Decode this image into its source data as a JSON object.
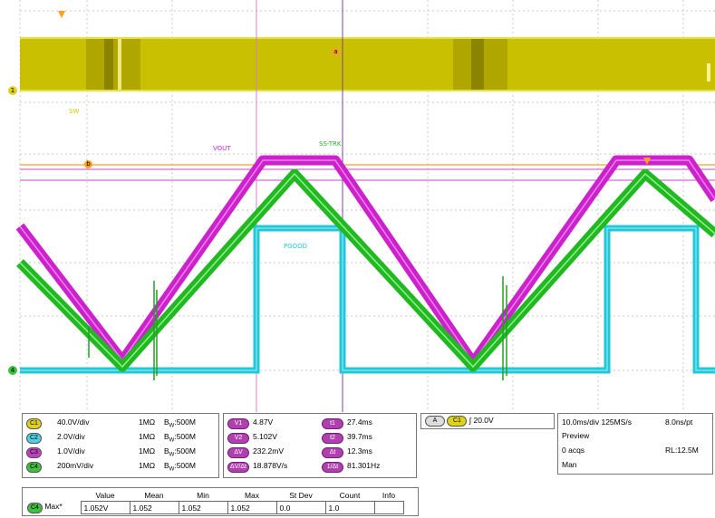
{
  "trace_labels": {
    "sw": "SW",
    "vout": "VOUT",
    "ss_trk": "SS-TRK",
    "pgood": "PGOOD"
  },
  "markers": {
    "cursor_a": "a",
    "cursor_b": "b",
    "ch1": "1",
    "ch4": "4"
  },
  "channels": [
    {
      "tag": "C1",
      "scale": "40.0V/div",
      "impedance": "1MΩ",
      "bw": "500M",
      "color": "#e0d21a"
    },
    {
      "tag": "C2",
      "scale": "2.0V/div",
      "impedance": "1MΩ",
      "bw": "500M",
      "color": "#4fd0e0"
    },
    {
      "tag": "C3",
      "scale": "1.0V/div",
      "impedance": "1MΩ",
      "bw": "500M",
      "color": "#c040c0"
    },
    {
      "tag": "C4",
      "scale": "200mV/div",
      "impedance": "1MΩ",
      "bw": "500M",
      "color": "#40c040"
    }
  ],
  "bw_prefix": "B",
  "bw_sub": "W",
  "cursors": {
    "left": [
      {
        "tag": "V1",
        "value": "4.87V"
      },
      {
        "tag": "V2",
        "value": "5.102V"
      },
      {
        "tag": "ΔV",
        "value": "232.2mV"
      },
      {
        "tag": "ΔV/Δt",
        "value": "18.878V/s"
      }
    ],
    "right": [
      {
        "tag": "t1",
        "value": "27.4ms"
      },
      {
        "tag": "t2",
        "value": "39.7ms"
      },
      {
        "tag": "Δt",
        "value": "12.3ms"
      },
      {
        "tag": "1/Δt",
        "value": "81.301Hz"
      }
    ]
  },
  "trigger": {
    "mode": "A",
    "channel": "C1",
    "slope": "∫",
    "level": "20.0V"
  },
  "timebase": {
    "rate": "10.0ms/div 125MS/s",
    "resolution": "8.0ns/pt",
    "state": "Preview",
    "acqs": "0 acqs",
    "record": "RL:12.5M",
    "mode": "Man"
  },
  "measurement": {
    "headers": [
      "Value",
      "Mean",
      "Min",
      "Max",
      "St Dev",
      "Count",
      "Info"
    ],
    "channel": "C4",
    "name": "Max*",
    "values": [
      "1.052V",
      "1.052",
      "1.052",
      "1.052",
      "0.0",
      "1.0",
      ""
    ]
  },
  "colors": {
    "sw": "#c8c000",
    "vout": "#cc22cc",
    "ss_trk": "#22b822",
    "pgood": "#22c8d8",
    "grid": "#c8c8c8",
    "cursor_h": "#ffa020",
    "cursor_v": "#c040c0"
  }
}
